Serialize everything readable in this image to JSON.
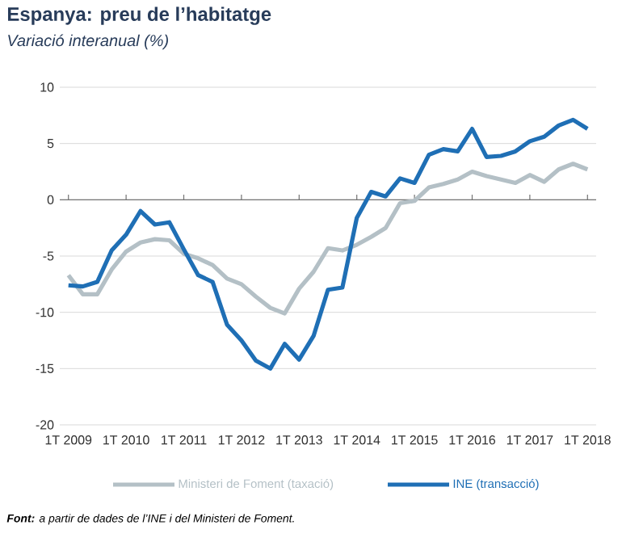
{
  "chart_data": {
    "type": "line",
    "title": "Espanya: preu de l’habitatge",
    "subtitle": "Variació interanual (%)",
    "categories": [
      "1T 2009",
      null,
      null,
      null,
      "1T 2010",
      null,
      null,
      null,
      "1T 2011",
      null,
      null,
      null,
      "1T 2012",
      null,
      null,
      null,
      "1T 2013",
      null,
      null,
      null,
      "1T 2014",
      null,
      null,
      null,
      "1T 2015",
      null,
      null,
      null,
      "1T 2016",
      null,
      null,
      null,
      "1T 2017",
      null,
      null,
      null,
      "1T 2018"
    ],
    "series": [
      {
        "name": "Ministeri de Foment (taxació)",
        "color": "#b4c0c6",
        "values": [
          -6.7,
          -8.4,
          -8.4,
          -6.2,
          -4.6,
          -3.8,
          -3.5,
          -3.6,
          -4.8,
          -5.2,
          -5.8,
          -7.0,
          -7.5,
          -8.6,
          -9.6,
          -10.1,
          -7.9,
          -6.4,
          -4.3,
          -4.5,
          -4.0,
          -3.3,
          -2.5,
          -0.3,
          -0.1,
          1.1,
          1.4,
          1.8,
          2.5,
          2.1,
          1.8,
          1.5,
          2.2,
          1.6,
          2.7,
          3.2,
          2.7
        ]
      },
      {
        "name": "INE (transacció)",
        "color": "#1f6fb5",
        "values": [
          -7.6,
          -7.7,
          -7.3,
          -4.5,
          -3.1,
          -1.0,
          -2.2,
          -2.0,
          -4.4,
          -6.7,
          -7.3,
          -11.1,
          -12.5,
          -14.3,
          -15.0,
          -12.8,
          -14.2,
          -12.1,
          -8.0,
          -7.8,
          -1.6,
          0.7,
          0.3,
          1.9,
          1.5,
          4.0,
          4.5,
          4.3,
          6.3,
          3.8,
          3.9,
          4.3,
          5.2,
          5.6,
          6.6,
          7.1,
          6.3
        ]
      }
    ],
    "ylim": [
      -20,
      10
    ],
    "yticks": [
      -20,
      -15,
      -10,
      -5,
      0,
      5,
      10
    ],
    "grid": "y",
    "legend": "bottom",
    "marker": "none",
    "line_style": "solid",
    "annotations": [
      "**Font:** a partir de dades de l’INE i del Ministeri de Foment."
    ]
  }
}
